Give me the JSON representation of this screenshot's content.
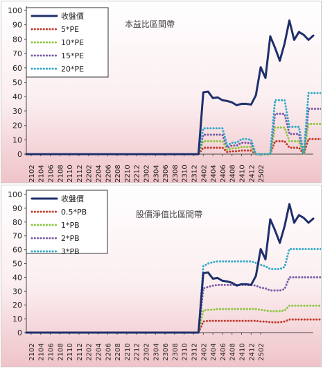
{
  "chart_data": [
    {
      "type": "line",
      "title": "本益比區間帶",
      "xlabel": "",
      "ylabel": "",
      "ylim": [
        0,
        100
      ],
      "yticks": [
        0,
        10,
        20,
        30,
        40,
        50,
        60,
        70,
        80,
        90,
        100
      ],
      "x_tick_labels": [
        "2102",
        "2104",
        "2106",
        "2108",
        "2110",
        "2112",
        "2202",
        "2204",
        "2206",
        "2208",
        "2210",
        "2212",
        "2302",
        "2304",
        "2306",
        "2308",
        "2310",
        "2312",
        "2402",
        "2404",
        "2406",
        "2408",
        "2410",
        "2412",
        "2502"
      ],
      "x_start": "2101",
      "x_end": "2503",
      "legend_position": "top-left",
      "grid": false,
      "series": [
        {
          "name": "收盤價",
          "color": "#1f2f6b",
          "style": "solid",
          "values": [
            0,
            0,
            0,
            0,
            0,
            0,
            0,
            0,
            0,
            0,
            0,
            0,
            0,
            0,
            0,
            0,
            0,
            0,
            0,
            0,
            0,
            0,
            0,
            0,
            0,
            0,
            0,
            0,
            0,
            0,
            0,
            0,
            0,
            0,
            0,
            0,
            0,
            43,
            43.5,
            39,
            39.5,
            37.5,
            37,
            36,
            34,
            35,
            35,
            34.5,
            41,
            60.5,
            53,
            82,
            74,
            65,
            77,
            93,
            79.5,
            85,
            83,
            79.5,
            82.5
          ]
        },
        {
          "name": "5*PE",
          "color": "#c0392b",
          "style": "dotted",
          "values": [
            0,
            0,
            0,
            0,
            0,
            0,
            0,
            0,
            0,
            0,
            0,
            0,
            0,
            0,
            0,
            0,
            0,
            0,
            0,
            0,
            0,
            0,
            0,
            0,
            0,
            0,
            0,
            0,
            0,
            0,
            0,
            0,
            0,
            0,
            0,
            0,
            0,
            4.5,
            4.5,
            4.5,
            4.5,
            4.5,
            1.5,
            2,
            2,
            2.5,
            2.5,
            2.5,
            0,
            0,
            0,
            0,
            9,
            9,
            9,
            4.5,
            4.5,
            4.5,
            0,
            10.5,
            10.5,
            10.5,
            10.5
          ]
        },
        {
          "name": "10*PE",
          "color": "#8dc63f",
          "style": "dotted",
          "values": [
            0,
            0,
            0,
            0,
            0,
            0,
            0,
            0,
            0,
            0,
            0,
            0,
            0,
            0,
            0,
            0,
            0,
            0,
            0,
            0,
            0,
            0,
            0,
            0,
            0,
            0,
            0,
            0,
            0,
            0,
            0,
            0,
            0,
            0,
            0,
            0,
            0,
            9,
            9,
            9,
            9,
            9,
            3,
            4,
            4,
            5,
            5,
            5,
            0,
            0,
            0,
            0,
            18.5,
            18.5,
            18.5,
            9,
            9,
            9,
            0,
            21,
            21,
            21,
            21
          ]
        },
        {
          "name": "15*PE",
          "color": "#7a5aa8",
          "style": "dotted",
          "values": [
            0,
            0,
            0,
            0,
            0,
            0,
            0,
            0,
            0,
            0,
            0,
            0,
            0,
            0,
            0,
            0,
            0,
            0,
            0,
            0,
            0,
            0,
            0,
            0,
            0,
            0,
            0,
            0,
            0,
            0,
            0,
            0,
            0,
            0,
            0,
            0,
            0,
            13.5,
            13.5,
            13.5,
            13.5,
            13.5,
            4.5,
            6,
            6,
            8,
            8,
            7.5,
            0,
            0,
            0,
            0,
            28,
            28,
            28,
            14,
            14,
            14,
            0,
            31.5,
            31.5,
            31.5,
            31.5
          ]
        },
        {
          "name": "20*PE",
          "color": "#31a9c9",
          "style": "dotted",
          "values": [
            0,
            0,
            0,
            0,
            0,
            0,
            0,
            0,
            0,
            0,
            0,
            0,
            0,
            0,
            0,
            0,
            0,
            0,
            0,
            0,
            0,
            0,
            0,
            0,
            0,
            0,
            0,
            0,
            0,
            0,
            0,
            0,
            0,
            0,
            0,
            0,
            0,
            18,
            18,
            18,
            18,
            18,
            6,
            8,
            8,
            10.5,
            10.5,
            10,
            0,
            0,
            0,
            0,
            37.5,
            37.5,
            37.5,
            19,
            19,
            19,
            0,
            42.5,
            42.5,
            42.5,
            42.5
          ]
        }
      ]
    },
    {
      "type": "line",
      "title": "股價淨值比區間帶",
      "xlabel": "",
      "ylabel": "",
      "ylim": [
        0,
        100
      ],
      "yticks": [
        0,
        10,
        20,
        30,
        40,
        50,
        60,
        70,
        80,
        90,
        100
      ],
      "x_tick_labels": [
        "2102",
        "2104",
        "2106",
        "2108",
        "2110",
        "2112",
        "2202",
        "2204",
        "2206",
        "2208",
        "2210",
        "2212",
        "2302",
        "2304",
        "2306",
        "2308",
        "2310",
        "2312",
        "2402",
        "2404",
        "2406",
        "2408",
        "2410",
        "2412",
        "2502"
      ],
      "x_start": "2101",
      "x_end": "2503",
      "legend_position": "top-left",
      "grid": false,
      "series": [
        {
          "name": "收盤價",
          "color": "#1f2f6b",
          "style": "solid",
          "values": [
            0,
            0,
            0,
            0,
            0,
            0,
            0,
            0,
            0,
            0,
            0,
            0,
            0,
            0,
            0,
            0,
            0,
            0,
            0,
            0,
            0,
            0,
            0,
            0,
            0,
            0,
            0,
            0,
            0,
            0,
            0,
            0,
            0,
            0,
            0,
            0,
            0,
            43,
            43.5,
            39,
            39.5,
            37.5,
            37,
            36,
            34,
            35,
            35,
            34.5,
            41,
            60.5,
            53,
            82,
            74,
            65,
            77,
            93,
            79.5,
            85,
            83,
            79.5,
            82.5
          ]
        },
        {
          "name": "0.5*PB",
          "color": "#c0392b",
          "style": "dotted",
          "values": [
            0,
            0,
            0,
            0,
            0,
            0,
            0,
            0,
            0,
            0,
            0,
            0,
            0,
            0,
            0,
            0,
            0,
            0,
            0,
            0,
            0,
            0,
            0,
            0,
            0,
            0,
            0,
            0,
            0,
            0,
            0,
            0,
            0,
            0,
            0,
            0,
            0,
            8,
            8.5,
            8.5,
            8.5,
            8.5,
            8.5,
            8.5,
            8.5,
            8.5,
            8.5,
            8.5,
            8.5,
            8,
            8,
            7.5,
            7.5,
            7.5,
            8,
            9.5,
            9.5,
            9.5,
            9.5,
            9.5,
            9.5,
            9.5,
            9.5
          ]
        },
        {
          "name": "1*PB",
          "color": "#8dc63f",
          "style": "dotted",
          "values": [
            0,
            0,
            0,
            0,
            0,
            0,
            0,
            0,
            0,
            0,
            0,
            0,
            0,
            0,
            0,
            0,
            0,
            0,
            0,
            0,
            0,
            0,
            0,
            0,
            0,
            0,
            0,
            0,
            0,
            0,
            0,
            0,
            0,
            0,
            0,
            0,
            0,
            16,
            16.5,
            16.5,
            17,
            17,
            17,
            17,
            17,
            17,
            17,
            17,
            17,
            16.5,
            16,
            15.5,
            15.5,
            15.5,
            16,
            19.5,
            19.5,
            19.5,
            19.5,
            19.5,
            19.5,
            19.5,
            19.5
          ]
        },
        {
          "name": "2*PB",
          "color": "#7a5aa8",
          "style": "dotted",
          "values": [
            0,
            0,
            0,
            0,
            0,
            0,
            0,
            0,
            0,
            0,
            0,
            0,
            0,
            0,
            0,
            0,
            0,
            0,
            0,
            0,
            0,
            0,
            0,
            0,
            0,
            0,
            0,
            0,
            0,
            0,
            0,
            0,
            0,
            0,
            0,
            0,
            0,
            32,
            33,
            34,
            34.5,
            34.5,
            34.5,
            34.5,
            34.5,
            34.5,
            34.5,
            34.5,
            34,
            32.5,
            32,
            30.5,
            30.5,
            30.5,
            31.5,
            40,
            40,
            40,
            40,
            40,
            40,
            40,
            40
          ]
        },
        {
          "name": "3*PB",
          "color": "#31a9c9",
          "style": "dotted",
          "values": [
            0,
            0,
            0,
            0,
            0,
            0,
            0,
            0,
            0,
            0,
            0,
            0,
            0,
            0,
            0,
            0,
            0,
            0,
            0,
            0,
            0,
            0,
            0,
            0,
            0,
            0,
            0,
            0,
            0,
            0,
            0,
            0,
            0,
            0,
            0,
            0,
            0,
            48,
            50,
            51,
            51.5,
            51.5,
            51.5,
            51.5,
            51.5,
            51.5,
            51.5,
            51.5,
            50.5,
            49,
            48,
            46,
            46,
            46,
            47.5,
            60.5,
            60.5,
            60.5,
            60.5,
            60.5,
            60.5,
            60.5,
            60.5
          ]
        }
      ]
    }
  ]
}
